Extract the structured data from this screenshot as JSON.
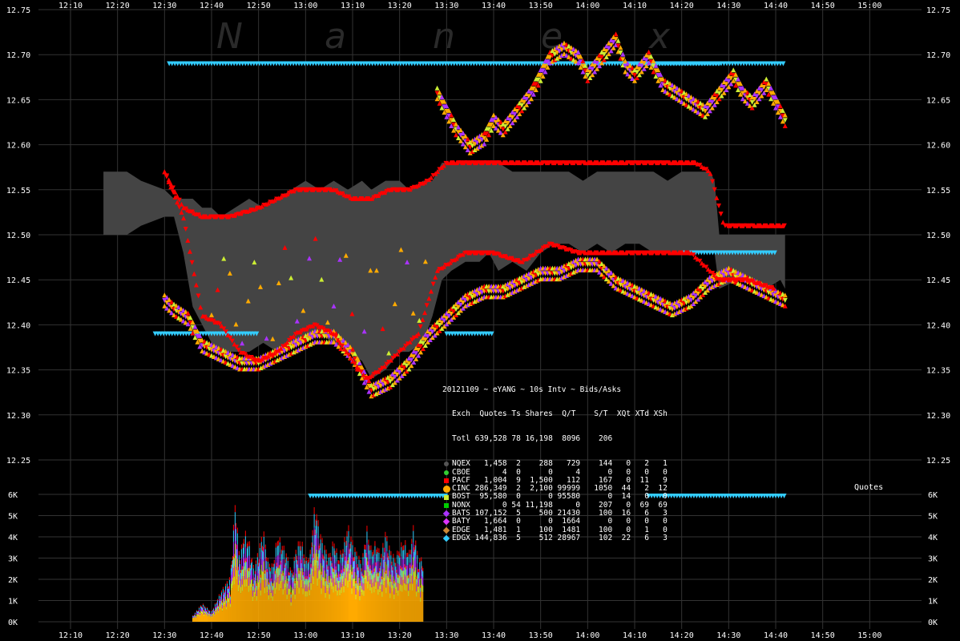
{
  "chart_data": [
    {
      "type": "scatter",
      "title": "",
      "x_ticks": [
        "12:10",
        "12:20",
        "12:30",
        "12:40",
        "12:50",
        "13:00",
        "13:10",
        "13:20",
        "13:30",
        "13:40",
        "13:50",
        "14:00",
        "14:10",
        "14:20",
        "14:30",
        "14:40",
        "14:50",
        "15:00"
      ],
      "y_ticks": [
        "12.75",
        "12.70",
        "12.65",
        "12.60",
        "12.55",
        "12.50",
        "12.45",
        "12.40",
        "12.35",
        "12.30",
        "12.25"
      ],
      "ylim": [
        12.2,
        12.75
      ],
      "xlim_minutes": [
        0,
        180
      ],
      "watermark": [
        "N",
        "a",
        "n",
        "e",
        "x"
      ],
      "nbbo_spread": [
        [
          7,
          12.5,
          12.57
        ],
        [
          12,
          12.5,
          12.57
        ],
        [
          15,
          12.51,
          12.56
        ],
        [
          20,
          12.52,
          12.55
        ],
        [
          22,
          12.52,
          12.54
        ],
        [
          24,
          12.48,
          12.54
        ],
        [
          26,
          12.42,
          12.54
        ],
        [
          28,
          12.4,
          12.53
        ],
        [
          30,
          12.38,
          12.53
        ],
        [
          32,
          12.37,
          12.52
        ],
        [
          35,
          12.37,
          12.53
        ],
        [
          38,
          12.37,
          12.54
        ],
        [
          41,
          12.38,
          12.53
        ],
        [
          44,
          12.37,
          12.54
        ],
        [
          47,
          12.38,
          12.55
        ],
        [
          50,
          12.38,
          12.56
        ],
        [
          53,
          12.39,
          12.55
        ],
        [
          56,
          12.38,
          12.56
        ],
        [
          59,
          12.37,
          12.55
        ],
        [
          62,
          12.36,
          12.56
        ],
        [
          64,
          12.34,
          12.55
        ],
        [
          67,
          12.35,
          12.56
        ],
        [
          70,
          12.37,
          12.56
        ],
        [
          72,
          12.37,
          12.55
        ],
        [
          75,
          12.38,
          12.56
        ],
        [
          77,
          12.41,
          12.56
        ],
        [
          79,
          12.45,
          12.58
        ],
        [
          81,
          12.46,
          12.58
        ],
        [
          84,
          12.47,
          12.58
        ],
        [
          87,
          12.47,
          12.58
        ],
        [
          89,
          12.48,
          12.58
        ],
        [
          91,
          12.46,
          12.58
        ],
        [
          94,
          12.47,
          12.57
        ],
        [
          97,
          12.46,
          12.57
        ],
        [
          100,
          12.48,
          12.57
        ],
        [
          103,
          12.49,
          12.57
        ],
        [
          106,
          12.49,
          12.57
        ],
        [
          109,
          12.48,
          12.56
        ],
        [
          112,
          12.49,
          12.57
        ],
        [
          115,
          12.48,
          12.57
        ],
        [
          118,
          12.49,
          12.57
        ],
        [
          121,
          12.49,
          12.57
        ],
        [
          124,
          12.48,
          12.57
        ],
        [
          127,
          12.48,
          12.56
        ],
        [
          130,
          12.48,
          12.57
        ],
        [
          133,
          12.48,
          12.57
        ],
        [
          136,
          12.48,
          12.57
        ],
        [
          137,
          12.48,
          12.56
        ],
        [
          138,
          12.44,
          12.5
        ],
        [
          142,
          12.45,
          12.5
        ],
        [
          145,
          12.45,
          12.5
        ],
        [
          148,
          12.44,
          12.5
        ],
        [
          151,
          12.45,
          12.5
        ],
        [
          152,
          12.44,
          12.5
        ]
      ],
      "bid_red": [
        [
          20,
          12.57
        ],
        [
          24,
          12.52
        ],
        [
          28,
          12.41
        ],
        [
          32,
          12.4
        ],
        [
          36,
          12.37
        ],
        [
          40,
          12.36
        ],
        [
          44,
          12.37
        ],
        [
          48,
          12.39
        ],
        [
          52,
          12.4
        ],
        [
          56,
          12.39
        ],
        [
          60,
          12.36
        ],
        [
          63,
          12.34
        ],
        [
          66,
          12.35
        ],
        [
          70,
          12.37
        ],
        [
          74,
          12.39
        ],
        [
          78,
          12.46
        ],
        [
          84,
          12.48
        ],
        [
          90,
          12.48
        ],
        [
          96,
          12.47
        ],
        [
          102,
          12.49
        ],
        [
          108,
          12.48
        ],
        [
          114,
          12.48
        ],
        [
          120,
          12.48
        ],
        [
          126,
          12.48
        ],
        [
          132,
          12.48
        ],
        [
          138,
          12.45
        ],
        [
          144,
          12.45
        ],
        [
          150,
          12.44
        ]
      ],
      "ask_red": [
        [
          20,
          12.57
        ],
        [
          24,
          12.53
        ],
        [
          28,
          12.52
        ],
        [
          34,
          12.52
        ],
        [
          40,
          12.53
        ],
        [
          44,
          12.54
        ],
        [
          48,
          12.55
        ],
        [
          52,
          12.55
        ],
        [
          56,
          12.55
        ],
        [
          60,
          12.54
        ],
        [
          64,
          12.54
        ],
        [
          68,
          12.55
        ],
        [
          72,
          12.55
        ],
        [
          76,
          12.56
        ],
        [
          80,
          12.58
        ],
        [
          88,
          12.58
        ],
        [
          96,
          12.58
        ],
        [
          104,
          12.58
        ],
        [
          112,
          12.58
        ],
        [
          120,
          12.58
        ],
        [
          126,
          12.58
        ],
        [
          130,
          12.58
        ],
        [
          133,
          12.58
        ],
        [
          136,
          12.57
        ],
        [
          139,
          12.51
        ],
        [
          144,
          12.51
        ],
        [
          148,
          12.51
        ],
        [
          152,
          12.51
        ]
      ],
      "upper_quotes": [
        [
          78,
          12.66
        ],
        [
          80,
          12.64
        ],
        [
          82,
          12.62
        ],
        [
          85,
          12.6
        ],
        [
          88,
          12.61
        ],
        [
          90,
          12.63
        ],
        [
          92,
          12.62
        ],
        [
          95,
          12.64
        ],
        [
          98,
          12.66
        ],
        [
          100,
          12.68
        ],
        [
          102,
          12.7
        ],
        [
          105,
          12.71
        ],
        [
          108,
          12.7
        ],
        [
          110,
          12.68
        ],
        [
          113,
          12.7
        ],
        [
          116,
          12.72
        ],
        [
          118,
          12.69
        ],
        [
          120,
          12.68
        ],
        [
          123,
          12.7
        ],
        [
          126,
          12.67
        ],
        [
          129,
          12.66
        ],
        [
          132,
          12.65
        ],
        [
          135,
          12.64
        ],
        [
          138,
          12.66
        ],
        [
          141,
          12.68
        ],
        [
          143,
          12.66
        ],
        [
          145,
          12.65
        ],
        [
          148,
          12.67
        ],
        [
          150,
          12.65
        ],
        [
          152,
          12.63
        ]
      ],
      "edgx_bid": [
        [
          21,
          12.69,
          138
        ],
        [
          118,
          12.69,
          152
        ]
      ],
      "edgx_low": [
        [
          18,
          12.39,
          40
        ],
        [
          80,
          12.39,
          90
        ],
        [
          130,
          12.48,
          150
        ]
      ],
      "edgx_extra": [
        [
          51,
          12.21,
          80
        ],
        [
          123,
          12.21,
          152
        ]
      ],
      "lower_quotes": [
        [
          20,
          12.43
        ],
        [
          22,
          12.42
        ],
        [
          25,
          12.41
        ],
        [
          28,
          12.38
        ],
        [
          32,
          12.37
        ],
        [
          36,
          12.36
        ],
        [
          40,
          12.36
        ],
        [
          44,
          12.37
        ],
        [
          48,
          12.38
        ],
        [
          52,
          12.39
        ],
        [
          56,
          12.39
        ],
        [
          60,
          12.37
        ],
        [
          64,
          12.33
        ],
        [
          68,
          12.34
        ],
        [
          72,
          12.36
        ],
        [
          76,
          12.39
        ],
        [
          80,
          12.41
        ],
        [
          84,
          12.43
        ],
        [
          88,
          12.44
        ],
        [
          92,
          12.44
        ],
        [
          96,
          12.45
        ],
        [
          100,
          12.46
        ],
        [
          104,
          12.46
        ],
        [
          108,
          12.47
        ],
        [
          112,
          12.47
        ],
        [
          116,
          12.45
        ],
        [
          120,
          12.44
        ],
        [
          124,
          12.43
        ],
        [
          128,
          12.42
        ],
        [
          132,
          12.43
        ],
        [
          136,
          12.45
        ],
        [
          140,
          12.46
        ],
        [
          144,
          12.45
        ],
        [
          148,
          12.44
        ],
        [
          152,
          12.43
        ]
      ],
      "series_colors": {
        "bid_ask_red": "#ff0000",
        "cinc_orange": "#ffaa00",
        "bats_purple": "#aa33ff",
        "edgx_cyan": "#33ccff",
        "spread_grey": "#444444",
        "nonx_green": "#33dd33",
        "bost_lime": "#ccee33"
      }
    },
    {
      "type": "bar",
      "label": "Quotes",
      "y_ticks": [
        "6K",
        "5K",
        "4K",
        "3K",
        "2K",
        "1K",
        "0K"
      ],
      "ylim": [
        0,
        6000
      ],
      "volume_profile": [
        [
          26,
          300
        ],
        [
          28,
          900
        ],
        [
          30,
          500
        ],
        [
          32,
          1500
        ],
        [
          34,
          2200
        ],
        [
          35,
          5800
        ],
        [
          36,
          3200
        ],
        [
          37,
          4400
        ],
        [
          38,
          3900
        ],
        [
          39,
          2600
        ],
        [
          40,
          3500
        ],
        [
          41,
          4500
        ],
        [
          42,
          3000
        ],
        [
          43,
          2700
        ],
        [
          44,
          4200
        ],
        [
          45,
          3800
        ],
        [
          46,
          3300
        ],
        [
          47,
          2400
        ],
        [
          48,
          3600
        ],
        [
          49,
          4100
        ],
        [
          50,
          3000
        ],
        [
          51,
          3400
        ],
        [
          52,
          5800
        ],
        [
          53,
          4400
        ],
        [
          54,
          3700
        ],
        [
          55,
          3200
        ],
        [
          56,
          4000
        ],
        [
          57,
          3100
        ],
        [
          58,
          3700
        ],
        [
          59,
          4700
        ],
        [
          60,
          3900
        ],
        [
          61,
          3300
        ],
        [
          62,
          2900
        ],
        [
          63,
          4600
        ],
        [
          64,
          3500
        ],
        [
          65,
          3900
        ],
        [
          66,
          3200
        ],
        [
          67,
          4400
        ],
        [
          68,
          3500
        ],
        [
          69,
          3100
        ],
        [
          70,
          3600
        ],
        [
          71,
          4000
        ],
        [
          72,
          3300
        ],
        [
          73,
          4700
        ],
        [
          74,
          3000
        ],
        [
          75,
          3200
        ]
      ],
      "stack_colors": [
        "#ffaa00",
        "#ccee33",
        "#aa33ff",
        "#33ccff",
        "#ff0000"
      ]
    }
  ],
  "legend": {
    "header": "20121109 ~ eYANG ~ 10s Intv ~ Bids/Asks",
    "columns": "Exch  Quotes Ts Shares  Q/T    S/T  XQt XTd XSh",
    "total": "Totl 639,528 78 16,198  8096    206",
    "rows": [
      {
        "color": "#555555",
        "shape": "circle",
        "text": "NQEX   1,458  2    288   729    144   0   2   1"
      },
      {
        "color": "#33cc33",
        "shape": "circle",
        "text": "CBOE       4  0      0     4      0   0   0   0"
      },
      {
        "color": "#ff0000",
        "shape": "square",
        "text": "PACF   1,004  9  1,500   112    167   0  11   9"
      },
      {
        "color": "#ffaa00",
        "shape": "circle",
        "text": "CINC 286,349  2  2,100 99999   1050  44   2  12"
      },
      {
        "color": "#ccee33",
        "shape": "square",
        "text": "BOST  95,580  0      0 95580      0  14   0   0"
      },
      {
        "color": "#00cc00",
        "shape": "square",
        "text": "NONX       0 54 11,198     0    207   0  69  69"
      },
      {
        "color": "#aa33ff",
        "shape": "diamond",
        "text": "BATS 107,152  5    500 21430    100  16   6   3"
      },
      {
        "color": "#dd33ff",
        "shape": "diamond",
        "text": "BATY   1,664  0      0  1664      0   0   0   0"
      },
      {
        "color": "#cc8833",
        "shape": "diamond",
        "text": "EDGE   1,481  1    100  1481    100   0   1   0"
      },
      {
        "color": "#33ccff",
        "shape": "diamond",
        "text": "EDGX 144,836  5    512 28967    102  22   6   3"
      }
    ]
  },
  "quotes_label": "Quotes"
}
